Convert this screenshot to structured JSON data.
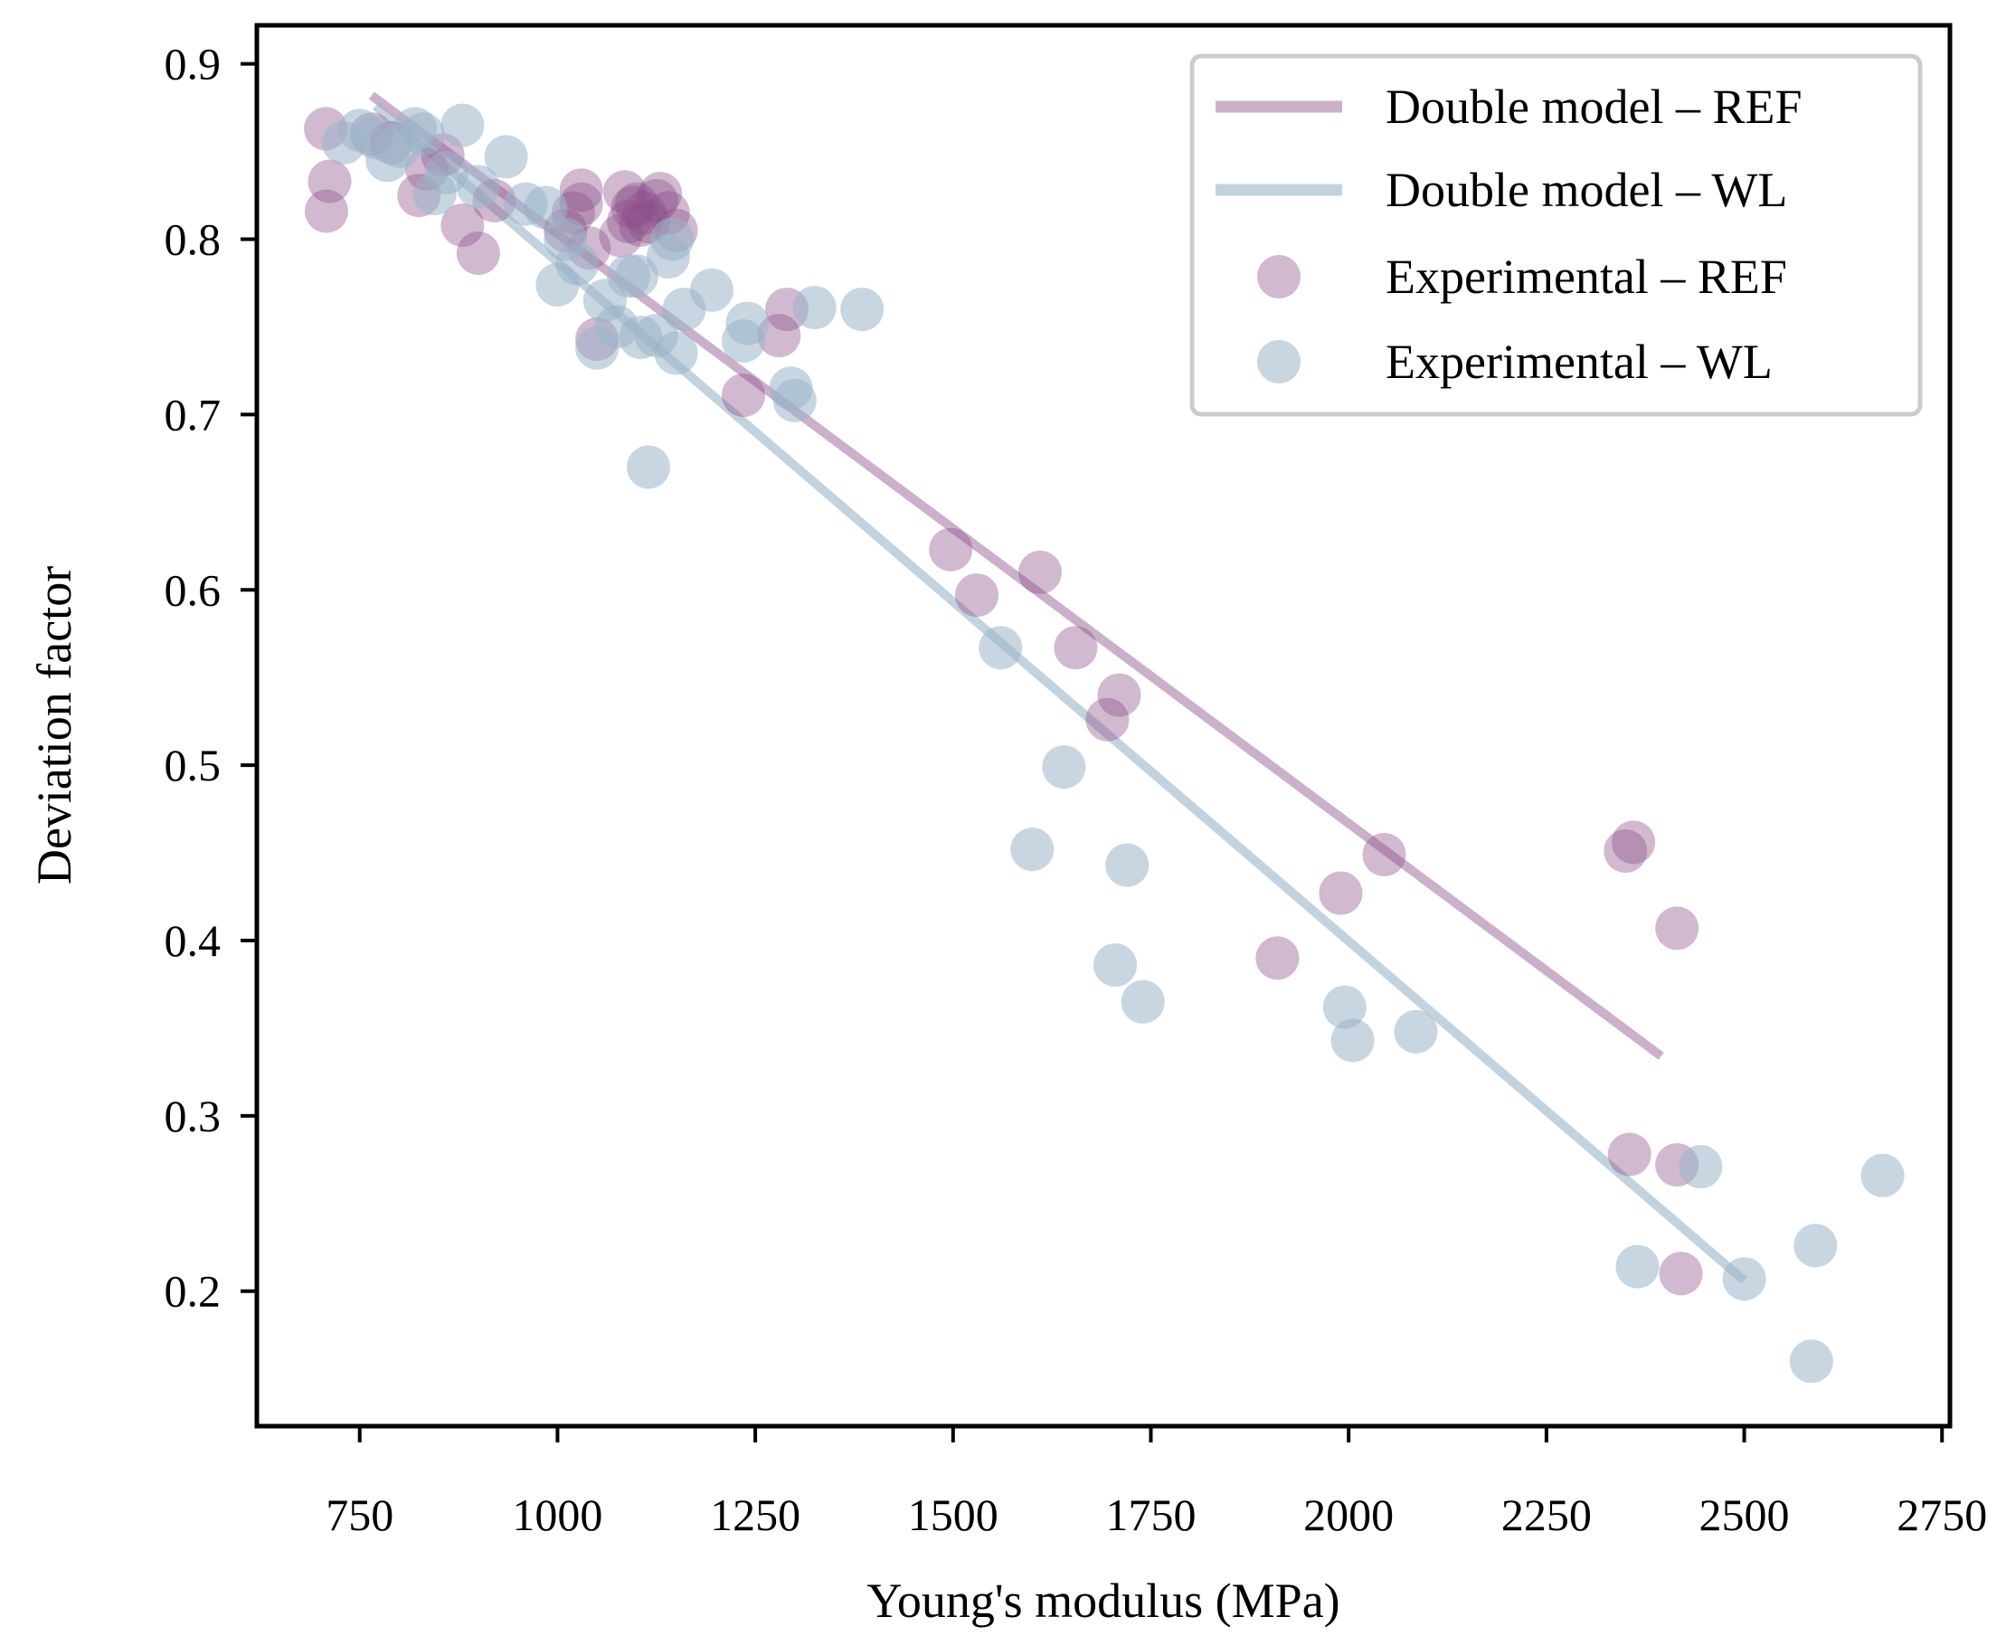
{
  "chart_data": {
    "type": "scatter",
    "title": "",
    "xlabel": "Young's modulus (MPa)",
    "ylabel": "Deviation factor",
    "xlim": [
      620,
      2760
    ],
    "ylim": [
      0.123,
      0.922
    ],
    "xticks": [
      750,
      1000,
      1250,
      1500,
      1750,
      2000,
      2250,
      2500,
      2750
    ],
    "yticks": [
      0.2,
      0.3,
      0.4,
      0.5,
      0.6,
      0.7,
      0.8,
      0.9
    ],
    "xtick_labels": [
      "750",
      "1000",
      "1250",
      "1500",
      "1750",
      "2000",
      "2250",
      "2500",
      "2750"
    ],
    "ytick_labels": [
      "0.2",
      "0.3",
      "0.4",
      "0.5",
      "0.6",
      "0.7",
      "0.8",
      "0.9"
    ],
    "grid": false,
    "legend_position": "top-right",
    "colors": {
      "ref": "#8b4f8a",
      "wl": "#9bb5c8"
    },
    "series": [
      {
        "name": "Double model – REF",
        "kind": "line",
        "color": "#8b4f8a",
        "x": [
          765,
          2395
        ],
        "y": [
          0.882,
          0.334
        ]
      },
      {
        "name": "Double model – WL",
        "kind": "line",
        "color": "#9bb5c8",
        "x": [
          770,
          2500
        ],
        "y": [
          0.876,
          0.206
        ]
      },
      {
        "name": "Experimental – REF",
        "kind": "scatter",
        "color": "#8b4f8a",
        "x": [
          707,
          712,
          708,
          765,
          790,
          825,
          835,
          855,
          880,
          900,
          920,
          1010,
          1020,
          1030,
          1030,
          1040,
          1050,
          1080,
          1085,
          1090,
          1095,
          1100,
          1105,
          1110,
          1115,
          1125,
          1130,
          1140,
          1150,
          1235,
          1280,
          1290,
          1497,
          1530,
          1610,
          1655,
          1695,
          1710,
          1910,
          1990,
          2045,
          2350,
          2360,
          2415,
          2415,
          2420,
          2355
        ],
        "y": [
          0.863,
          0.833,
          0.816,
          0.86,
          0.855,
          0.825,
          0.84,
          0.848,
          0.808,
          0.792,
          0.822,
          0.805,
          0.815,
          0.828,
          0.82,
          0.795,
          0.743,
          0.802,
          0.827,
          0.81,
          0.818,
          0.82,
          0.808,
          0.815,
          0.81,
          0.822,
          0.826,
          0.815,
          0.805,
          0.711,
          0.745,
          0.76,
          0.623,
          0.597,
          0.61,
          0.567,
          0.526,
          0.54,
          0.39,
          0.427,
          0.449,
          0.451,
          0.456,
          0.407,
          0.272,
          0.21,
          0.278
        ]
      },
      {
        "name": "Experimental – WL",
        "kind": "scatter",
        "color": "#9bb5c8",
        "x": [
          730,
          750,
          770,
          785,
          800,
          820,
          830,
          845,
          860,
          880,
          900,
          935,
          960,
          985,
          1000,
          1010,
          1025,
          1050,
          1060,
          1075,
          1090,
          1100,
          1105,
          1115,
          1125,
          1140,
          1145,
          1150,
          1160,
          1195,
          1235,
          1240,
          1295,
          1300,
          1325,
          1385,
          1560,
          1600,
          1640,
          1705,
          1720,
          1740,
          1995,
          2005,
          2085,
          2365,
          2445,
          2500,
          2585,
          2590,
          2675
        ],
        "y": [
          0.855,
          0.862,
          0.858,
          0.845,
          0.853,
          0.863,
          0.86,
          0.826,
          0.838,
          0.865,
          0.83,
          0.847,
          0.82,
          0.818,
          0.774,
          0.8,
          0.786,
          0.738,
          0.765,
          0.75,
          0.779,
          0.779,
          0.744,
          0.67,
          0.745,
          0.79,
          0.8,
          0.735,
          0.76,
          0.771,
          0.742,
          0.752,
          0.715,
          0.708,
          0.761,
          0.76,
          0.567,
          0.452,
          0.499,
          0.386,
          0.443,
          0.365,
          0.362,
          0.343,
          0.348,
          0.214,
          0.271,
          0.207,
          0.16,
          0.226,
          0.266
        ]
      }
    ]
  }
}
